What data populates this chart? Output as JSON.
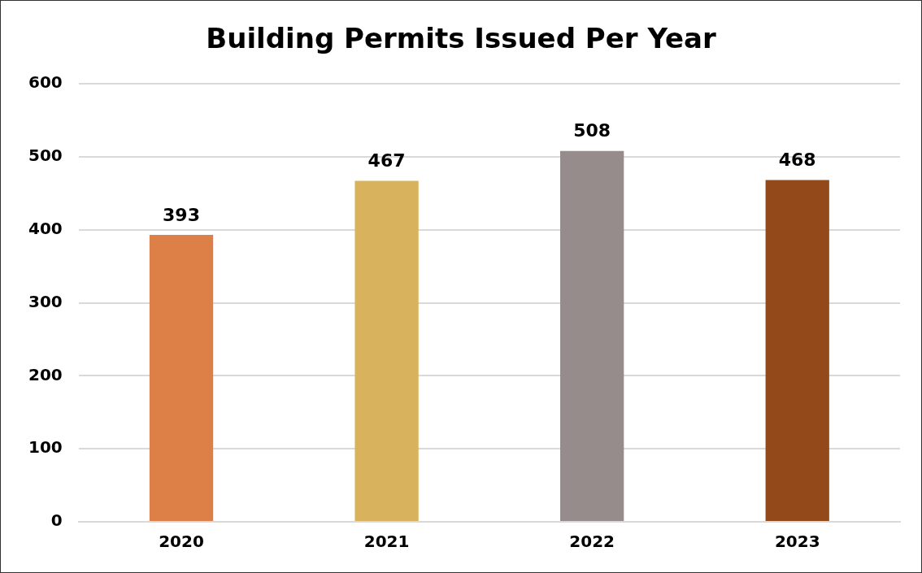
{
  "chart_data": {
    "type": "bar",
    "title": "Building Permits Issued Per Year",
    "categories": [
      "2020",
      "2021",
      "2022",
      "2023"
    ],
    "values": [
      393,
      467,
      508,
      468
    ],
    "colors": [
      "#dd8047",
      "#d8b25c",
      "#968c8c",
      "#94491a"
    ],
    "ylim": [
      0,
      600
    ],
    "yticks": [
      0,
      100,
      200,
      300,
      400,
      500,
      600
    ],
    "grid": "y",
    "legend": false,
    "data_labels": true
  }
}
